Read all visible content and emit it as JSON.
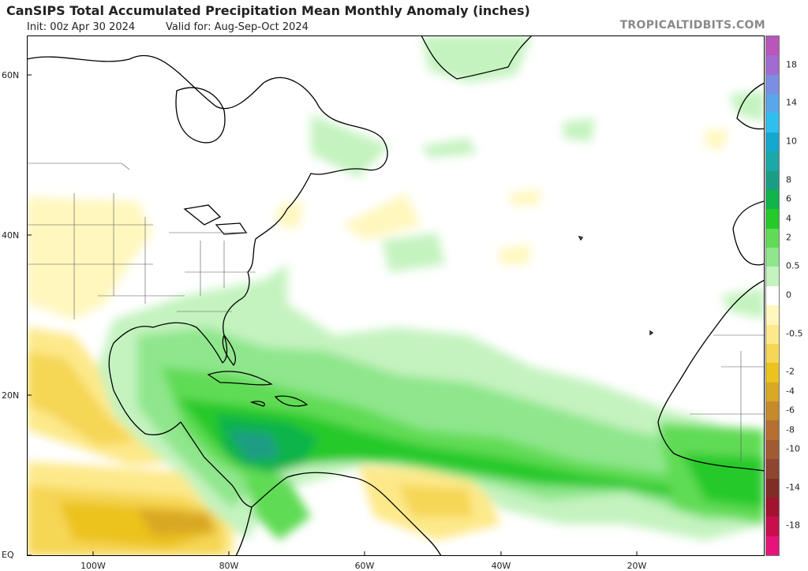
{
  "header": {
    "title": "CanSIPS Total Accumulated Precipitation Mean Monthly Anomaly (inches)",
    "init": "Init: 00z Apr 30 2024",
    "valid": "Valid for: Aug-Sep-Oct 2024",
    "brand": "TROPICALTIDBITS.COM"
  },
  "axes": {
    "lat_labels": [
      "60N",
      "40N",
      "20N",
      "EQ"
    ],
    "lon_labels": [
      "100W",
      "80W",
      "60W",
      "40W",
      "20W"
    ]
  },
  "colorbar": {
    "colors": [
      "#b956b9",
      "#a26bd0",
      "#7b8ee2",
      "#5aa6ea",
      "#2fbfef",
      "#14a8cf",
      "#1ba8a8",
      "#1a9d84",
      "#10b44a",
      "#25c92a",
      "#61db55",
      "#8fe68c",
      "#c4f3bf",
      "#ffffff",
      "#fff7be",
      "#fde98a",
      "#f6d655",
      "#ecc21f",
      "#d9a824",
      "#c68a2a",
      "#b46f31",
      "#a25a33",
      "#8e4532",
      "#7e2e27",
      "#a1132e",
      "#c80e4c",
      "#e5147a"
    ],
    "labels": [
      "18",
      "14",
      "10",
      "8",
      "6",
      "4",
      "2",
      "0.5",
      "0",
      "-0.5",
      "-2",
      "-4",
      "-6",
      "-8",
      "-10",
      "-14",
      "-18"
    ]
  }
}
